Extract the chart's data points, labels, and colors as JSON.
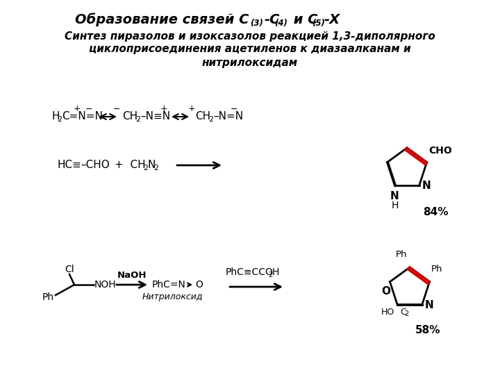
{
  "bg_color": "#ffffff",
  "red_color": "#cc0000",
  "title1": "Образование связей С",
  "title1_sub1": "(3)",
  "title1_dash1": "-С",
  "title1_sub2": "(4)",
  "title1_mid": " и С",
  "title1_sub3": "(5)",
  "title1_end": "-Х",
  "title2": "Синтез пиразолов и изоксазолов реакцией 1,3-диполярного",
  "title3": "циклоприсоединения ацетиленов к диазаалканам и",
  "title4": "нитрилоксидам",
  "minus": "−",
  "endash": "–",
  "triple_bond": "≡",
  "nitrile_oxide_label": "Нитрилоксид"
}
